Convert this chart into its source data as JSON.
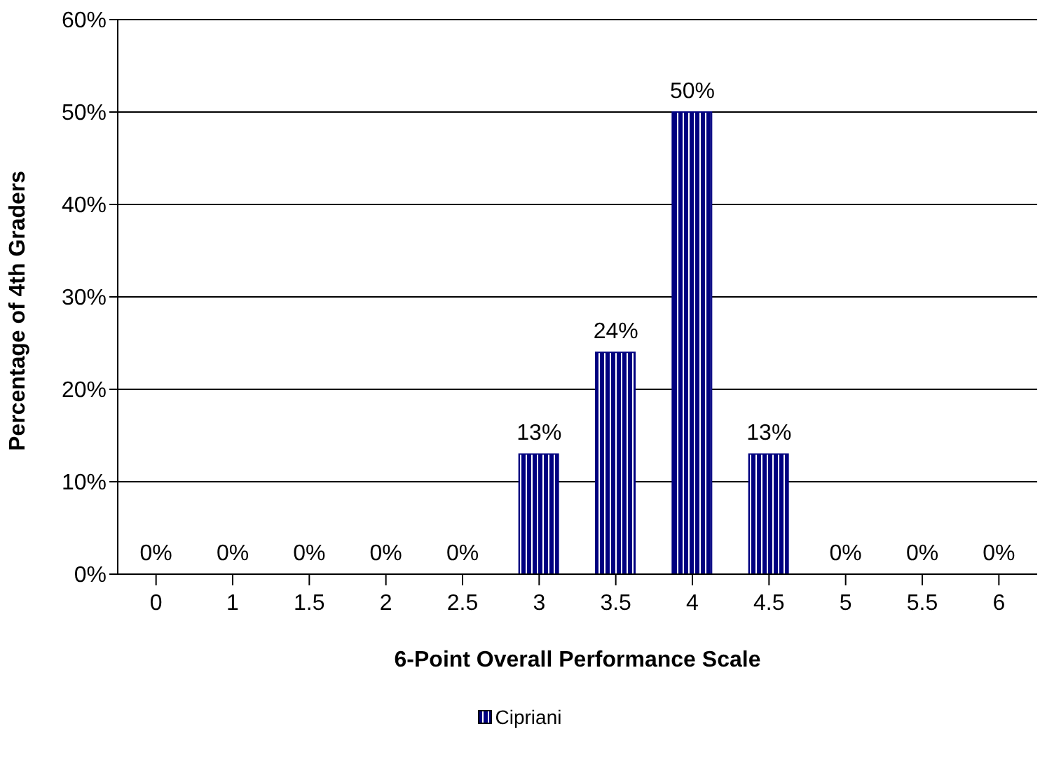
{
  "chart_data": {
    "type": "bar",
    "xlabel": "6-Point Overall Performance Scale",
    "ylabel": "Percentage of 4th Graders",
    "categories": [
      "0",
      "1",
      "1.5",
      "2",
      "2.5",
      "3",
      "3.5",
      "4",
      "4.5",
      "5",
      "5.5",
      "6"
    ],
    "series": [
      {
        "name": "Cipriani",
        "color": "#000080",
        "values": [
          0,
          0,
          0,
          0,
          0,
          13,
          24,
          50,
          13,
          0,
          0,
          0
        ],
        "value_labels": [
          "0%",
          "0%",
          "0%",
          "0%",
          "0%",
          "13%",
          "24%",
          "50%",
          "13%",
          "0%",
          "0%",
          "0%"
        ]
      }
    ],
    "ylim": [
      0,
      60
    ],
    "yticks": [
      {
        "value": 0,
        "label": "0%"
      },
      {
        "value": 10,
        "label": "10%"
      },
      {
        "value": 20,
        "label": "20%"
      },
      {
        "value": 30,
        "label": "30%"
      },
      {
        "value": 40,
        "label": "40%"
      },
      {
        "value": 50,
        "label": "50%"
      },
      {
        "value": 60,
        "label": "60%"
      }
    ],
    "grid": "y",
    "legend": "bottom"
  }
}
